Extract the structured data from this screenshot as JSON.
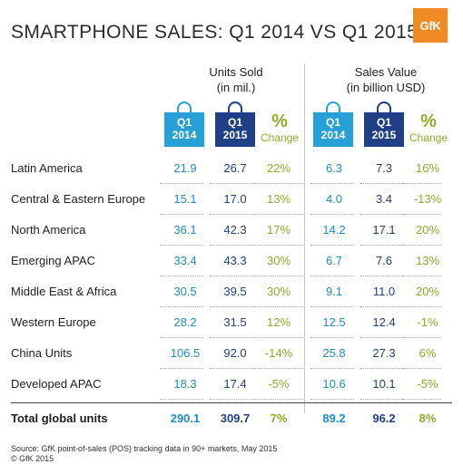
{
  "title": "SMARTPHONE SALES: Q1 2014 VS Q1 2015",
  "logo_text": "GfK",
  "groups": {
    "units": {
      "line1": "Units Sold",
      "line2": "(in mil.)"
    },
    "value": {
      "line1": "Sales Value",
      "line2": "(in billion USD)"
    }
  },
  "col_headers": {
    "q1": "Q1",
    "y2014": "2014",
    "y2015": "2015",
    "pct": "%",
    "change": "Change"
  },
  "rows": [
    {
      "region": "Latin America",
      "u14": "21.9",
      "u15": "26.7",
      "uc": "22%",
      "v14": "6.3",
      "v15": "7.3",
      "vc": "16%"
    },
    {
      "region": "Central & Eastern Europe",
      "u14": "15.1",
      "u15": "17.0",
      "uc": "13%",
      "v14": "4.0",
      "v15": "3.4",
      "vc": "-13%"
    },
    {
      "region": "North America",
      "u14": "36.1",
      "u15": "42.3",
      "uc": "17%",
      "v14": "14.2",
      "v15": "17.1",
      "vc": "20%"
    },
    {
      "region": "Emerging APAC",
      "u14": "33.4",
      "u15": "43.3",
      "uc": "30%",
      "v14": "6.7",
      "v15": "7.6",
      "vc": "13%"
    },
    {
      "region": "Middle East & Africa",
      "u14": "30.5",
      "u15": "39.5",
      "uc": "30%",
      "v14": "9.1",
      "v15": "11.0",
      "vc": "20%"
    },
    {
      "region": "Western Europe",
      "u14": "28.2",
      "u15": "31.5",
      "uc": "12%",
      "v14": "12.5",
      "v15": "12.4",
      "vc": "-1%"
    },
    {
      "region": "China Units",
      "u14": "106.5",
      "u15": "92.0",
      "uc": "-14%",
      "v14": "25.8",
      "v15": "27.3",
      "vc": "6%"
    },
    {
      "region": "Developed APAC",
      "u14": "18.3",
      "u15": "17.4",
      "uc": "-5%",
      "v14": "10.6",
      "v15": "10.1",
      "vc": "-5%"
    }
  ],
  "total": {
    "region": "Total global units",
    "u14": "290.1",
    "u15": "309.7",
    "uc": "7%",
    "v14": "89.2",
    "v15": "96.2",
    "vc": "8%"
  },
  "source_line1": "Source: GfK point-of-sales (POS) tracking data in 90+ markets, May 2015",
  "source_line2": "© GfK 2015",
  "colors": {
    "q2014": "#27a0d6",
    "q2015": "#1f3f86",
    "change": "#8aad2b",
    "logo": "#f08a24"
  }
}
